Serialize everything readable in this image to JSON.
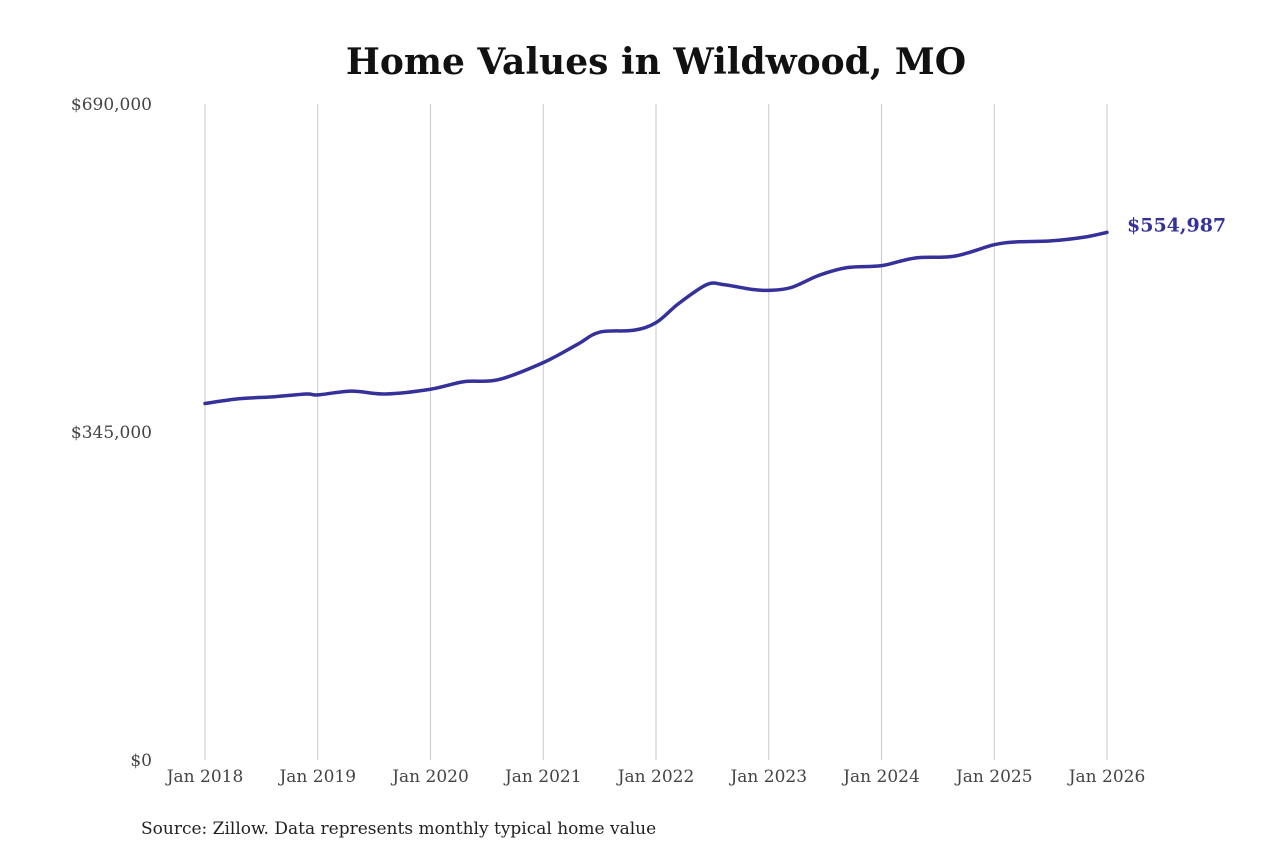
{
  "chart_data": {
    "type": "line",
    "title": "Home Values in Wildwood, MO",
    "xlabel": "",
    "ylabel": "",
    "ylim": [
      0,
      690000
    ],
    "yticks": [
      {
        "value": 0,
        "label": "$0"
      },
      {
        "value": 345000,
        "label": "$345,000"
      },
      {
        "value": 690000,
        "label": "$690,000"
      }
    ],
    "xticks": [
      {
        "value": 2018,
        "label": "Jan 2018"
      },
      {
        "value": 2019,
        "label": "Jan 2019"
      },
      {
        "value": 2020,
        "label": "Jan 2020"
      },
      {
        "value": 2021,
        "label": "Jan 2021"
      },
      {
        "value": 2022,
        "label": "Jan 2022"
      },
      {
        "value": 2023,
        "label": "Jan 2023"
      },
      {
        "value": 2024,
        "label": "Jan 2024"
      },
      {
        "value": 2025,
        "label": "Jan 2025"
      },
      {
        "value": 2026,
        "label": "Jan 2026"
      }
    ],
    "xlim": [
      2018,
      2026
    ],
    "grid": "vertical",
    "series": [
      {
        "color": "#35319a",
        "points": [
          {
            "x": 2018.0,
            "y": 375000
          },
          {
            "x": 2018.3,
            "y": 380000
          },
          {
            "x": 2018.6,
            "y": 382000
          },
          {
            "x": 2018.9,
            "y": 385000
          },
          {
            "x": 2019.0,
            "y": 384000
          },
          {
            "x": 2019.3,
            "y": 388000
          },
          {
            "x": 2019.6,
            "y": 385000
          },
          {
            "x": 2020.0,
            "y": 390000
          },
          {
            "x": 2020.3,
            "y": 398000
          },
          {
            "x": 2020.6,
            "y": 400000
          },
          {
            "x": 2021.0,
            "y": 418000
          },
          {
            "x": 2021.3,
            "y": 437000
          },
          {
            "x": 2021.5,
            "y": 450000
          },
          {
            "x": 2021.8,
            "y": 452000
          },
          {
            "x": 2022.0,
            "y": 460000
          },
          {
            "x": 2022.2,
            "y": 480000
          },
          {
            "x": 2022.45,
            "y": 500000
          },
          {
            "x": 2022.6,
            "y": 500000
          },
          {
            "x": 2022.85,
            "y": 495000
          },
          {
            "x": 2023.0,
            "y": 494000
          },
          {
            "x": 2023.2,
            "y": 497000
          },
          {
            "x": 2023.45,
            "y": 510000
          },
          {
            "x": 2023.7,
            "y": 518000
          },
          {
            "x": 2024.0,
            "y": 520000
          },
          {
            "x": 2024.3,
            "y": 528000
          },
          {
            "x": 2024.65,
            "y": 530000
          },
          {
            "x": 2025.0,
            "y": 542000
          },
          {
            "x": 2025.2,
            "y": 545000
          },
          {
            "x": 2025.5,
            "y": 546000
          },
          {
            "x": 2025.8,
            "y": 550000
          },
          {
            "x": 2026.0,
            "y": 554987
          }
        ]
      }
    ],
    "end_label": "$554,987",
    "source": "Source: Zillow. Data represents monthly typical home value"
  }
}
